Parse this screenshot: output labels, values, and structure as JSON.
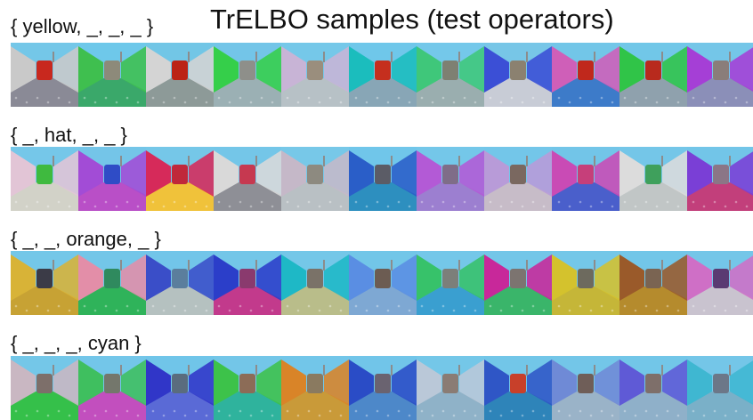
{
  "title": "TrELBO samples (test operators)",
  "rows": [
    {
      "label": "{ yellow, _, _, _ }",
      "tiles": [
        {
          "sky": "#74c7e8",
          "wall": "#c9c9c9",
          "floor": "#8a8a96",
          "obj": "#c8281e"
        },
        {
          "sky": "#6ec8ea",
          "wall": "#3fbf4f",
          "floor": "#3aa86a",
          "obj": "#8d8a7a"
        },
        {
          "sky": "#72c6e6",
          "wall": "#d4d4d4",
          "floor": "#8d9a98",
          "obj": "#bb2316"
        },
        {
          "sky": "#73c5e8",
          "wall": "#35cf4a",
          "floor": "#9bb0b4",
          "obj": "#8e8f8a"
        },
        {
          "sky": "#75c8e9",
          "wall": "#c8b4d6",
          "floor": "#b7c1c6",
          "obj": "#9a8e7d"
        },
        {
          "sky": "#6fc7ea",
          "wall": "#1bbdbd",
          "floor": "#88a6b6",
          "obj": "#c52f1e"
        },
        {
          "sky": "#74c8ea",
          "wall": "#3fc77a",
          "floor": "#9aaeaf",
          "obj": "#7e8072"
        },
        {
          "sky": "#77c6e7",
          "wall": "#3b4fd6",
          "floor": "#c8ccd6",
          "obj": "#8b8170"
        },
        {
          "sky": "#72c6e8",
          "wall": "#cf5fb8",
          "floor": "#3d7bc9",
          "obj": "#c0281c"
        },
        {
          "sky": "#71c7e8",
          "wall": "#30c448",
          "floor": "#8fa1ad",
          "obj": "#b82a1d"
        },
        {
          "sky": "#74c6e8",
          "wall": "#a53fd6",
          "floor": "#8b8fb8",
          "obj": "#8a7d7a"
        }
      ]
    },
    {
      "label": "{ _, hat, _, _ }",
      "tiles": [
        {
          "sky": "#75c7e9",
          "wall": "#e2c5d6",
          "floor": "#d2d2c8",
          "obj": "#3fba3f"
        },
        {
          "sky": "#74c5e8",
          "wall": "#a24cd6",
          "floor": "#b94fc7",
          "obj": "#2f4cc6"
        },
        {
          "sky": "#75c7e8",
          "wall": "#d62a5a",
          "floor": "#f0c23a",
          "obj": "#c0283a"
        },
        {
          "sky": "#74c6e8",
          "wall": "#d9d9d9",
          "floor": "#8e8f96",
          "obj": "#c63950"
        },
        {
          "sky": "#77c8e8",
          "wall": "#c5b8c8",
          "floor": "#b9c0c4",
          "obj": "#8d8a80"
        },
        {
          "sky": "#70c6ea",
          "wall": "#2a5ec8",
          "floor": "#2d8fbf",
          "obj": "#5b5c66"
        },
        {
          "sky": "#74c7e9",
          "wall": "#b35ad6",
          "floor": "#9c7fd0",
          "obj": "#7f6d88"
        },
        {
          "sky": "#73c6e9",
          "wall": "#b89bd8",
          "floor": "#c7bcc8",
          "obj": "#7a6860"
        },
        {
          "sky": "#72c5e8",
          "wall": "#c94bb5",
          "floor": "#4a5fcb",
          "obj": "#c63f7a"
        },
        {
          "sky": "#74c6e8",
          "wall": "#dcdcdc",
          "floor": "#c1c6c6",
          "obj": "#3fa05c"
        },
        {
          "sky": "#72c5e8",
          "wall": "#7a3fd6",
          "floor": "#c23f7b",
          "obj": "#8b7686"
        }
      ]
    },
    {
      "label": "{ _, _, orange, _ }",
      "tiles": [
        {
          "sky": "#74c7e8",
          "wall": "#d8b337",
          "floor": "#c7a234",
          "obj": "#3b3b47"
        },
        {
          "sky": "#73c6e8",
          "wall": "#e38ea8",
          "floor": "#2fb35a",
          "obj": "#2f8a5e"
        },
        {
          "sky": "#72c5e9",
          "wall": "#3a4ec8",
          "floor": "#b5c1c0",
          "obj": "#5b7e9d"
        },
        {
          "sky": "#73c6e8",
          "wall": "#2b3ec9",
          "floor": "#c23a8c",
          "obj": "#8a3a6e"
        },
        {
          "sky": "#74c7e8",
          "wall": "#1eb8c6",
          "floor": "#b9bd8a",
          "obj": "#7a7268"
        },
        {
          "sky": "#72c6e8",
          "wall": "#5a8ee3",
          "floor": "#7ea8d3",
          "obj": "#6c5c52"
        },
        {
          "sky": "#74c7e9",
          "wall": "#37c26a",
          "floor": "#3a9fd0",
          "obj": "#7c7f7a"
        },
        {
          "sky": "#73c6e8",
          "wall": "#c8289a",
          "floor": "#3ab56a",
          "obj": "#7c7470"
        },
        {
          "sky": "#74c7e8",
          "wall": "#d4c22d",
          "floor": "#c5b638",
          "obj": "#6d6a5e"
        },
        {
          "sky": "#72c6e8",
          "wall": "#9a5a2a",
          "floor": "#b58b2d",
          "obj": "#7a6452"
        },
        {
          "sky": "#74c6e8",
          "wall": "#cf6fc6",
          "floor": "#c9c3cf",
          "obj": "#5a3a72"
        }
      ]
    },
    {
      "label": "{ _, _, _, cyan }",
      "tiles": [
        {
          "sky": "#74c7e8",
          "wall": "#c9b7c2",
          "floor": "#35c04a",
          "obj": "#7d6f6a"
        },
        {
          "sky": "#73c6e9",
          "wall": "#3fbf5f",
          "floor": "#c24fbe",
          "obj": "#74776c"
        },
        {
          "sky": "#70c5e9",
          "wall": "#3036c8",
          "floor": "#5a6ad6",
          "obj": "#5a6c7e"
        },
        {
          "sky": "#73c6e8",
          "wall": "#3dc24a",
          "floor": "#2fb39d",
          "obj": "#8c6c57"
        },
        {
          "sky": "#72c6e9",
          "wall": "#d98428",
          "floor": "#c99a39",
          "obj": "#8a7a60"
        },
        {
          "sky": "#71c5e9",
          "wall": "#2a4cc6",
          "floor": "#4d88c9",
          "obj": "#6a6370"
        },
        {
          "sky": "#74c7e8",
          "wall": "#bac8d8",
          "floor": "#8fb2c8",
          "obj": "#8a7c74"
        },
        {
          "sky": "#72c6e8",
          "wall": "#2f56c6",
          "floor": "#2e84b9",
          "obj": "#c8402a"
        },
        {
          "sky": "#73c6e8",
          "wall": "#6f8ad6",
          "floor": "#9ab3c8",
          "obj": "#6f5e58"
        },
        {
          "sky": "#72c6e8",
          "wall": "#5f5ad6",
          "floor": "#8fb0c9",
          "obj": "#7e6f6a"
        },
        {
          "sky": "#74c6e8",
          "wall": "#3fb7d1",
          "floor": "#7ab0c8",
          "obj": "#6c7788"
        }
      ]
    }
  ]
}
